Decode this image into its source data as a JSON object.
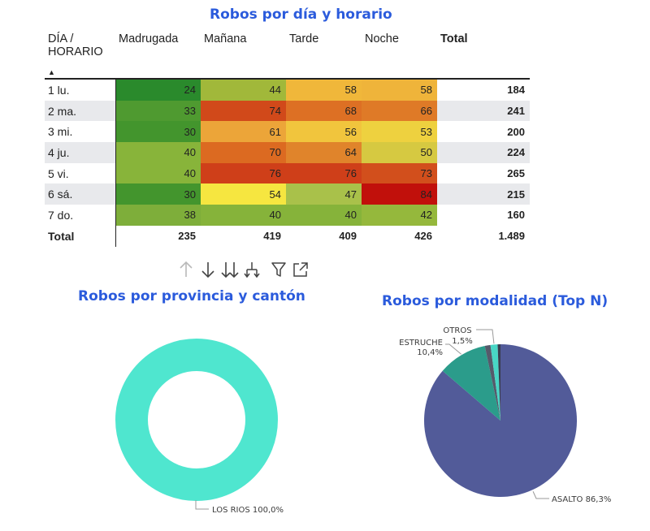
{
  "chart_data": [
    {
      "type": "table",
      "title": "Robos por día y horario",
      "header": {
        "corner": [
          "DÍA /",
          "HORARIO"
        ],
        "total": "Total"
      },
      "columns": [
        "Madrugada",
        "Mañana",
        "Tarde",
        "Noche"
      ],
      "rows": [
        {
          "label": "1 lu.",
          "values": [
            24,
            44,
            58,
            58
          ],
          "total": "184"
        },
        {
          "label": "2 ma.",
          "values": [
            33,
            74,
            68,
            66
          ],
          "total": "241"
        },
        {
          "label": "3 mi.",
          "values": [
            30,
            61,
            56,
            53
          ],
          "total": "200"
        },
        {
          "label": "4 ju.",
          "values": [
            40,
            70,
            64,
            50
          ],
          "total": "224"
        },
        {
          "label": "5 vi.",
          "values": [
            40,
            76,
            76,
            73
          ],
          "total": "265"
        },
        {
          "label": "6 sá.",
          "values": [
            30,
            54,
            47,
            84
          ],
          "total": "215"
        },
        {
          "label": "7 do.",
          "values": [
            38,
            40,
            40,
            42
          ],
          "total": "160"
        }
      ],
      "totals": {
        "label": "Total",
        "values": [
          "235",
          "419",
          "409",
          "426"
        ],
        "grand": "1.489"
      },
      "cell_colors": [
        [
          "#2a8a2c",
          "#a1b83a",
          "#f0b73a",
          "#efb43a"
        ],
        [
          "#4f9a30",
          "#d1491a",
          "#dd7024",
          "#df7a27"
        ],
        [
          "#43952d",
          "#eca539",
          "#f1c53d",
          "#eed13f"
        ],
        [
          "#88b43a",
          "#dc6a21",
          "#e0842b",
          "#d6c941"
        ],
        [
          "#88b43a",
          "#cf3f19",
          "#cf3f19",
          "#d24f1c"
        ],
        [
          "#43952d",
          "#f6e640",
          "#a9c14a",
          "#c1100b"
        ],
        [
          "#7eae3a",
          "#86b33a",
          "#86b33a",
          "#95b83c"
        ]
      ]
    },
    {
      "type": "pie",
      "title": "Robos por provincia y cantón",
      "slices": [
        {
          "label": "LOS RIOS",
          "value": 100.0,
          "text": "LOS RIOS 100,0%",
          "color": "#4fe6cf"
        }
      ]
    },
    {
      "type": "pie",
      "title": "Robos por modalidad (Top N)",
      "slices": [
        {
          "label": "ASALTO",
          "value": 86.3,
          "text": "ASALTO 86,3%",
          "color": "#525b99"
        },
        {
          "label": "ESTRUCHE",
          "value": 10.4,
          "text": [
            "ESTRUCHE",
            "10,4%"
          ],
          "color": "#2b9c8b"
        },
        {
          "label": "",
          "value": 1.2,
          "color": "#555a6b"
        },
        {
          "label": "OTROS",
          "value": 1.5,
          "text": [
            "OTROS",
            "1,5%"
          ],
          "color": "#48d6c5"
        },
        {
          "label": "",
          "value": 0.6,
          "color": "#3a3d4f"
        }
      ]
    }
  ],
  "toolbar": {
    "icons": [
      "arrow-up-icon",
      "arrow-down-icon",
      "double-arrow-down-icon",
      "expand-hierarchy-icon",
      "filter-icon",
      "focus-mode-icon"
    ]
  }
}
